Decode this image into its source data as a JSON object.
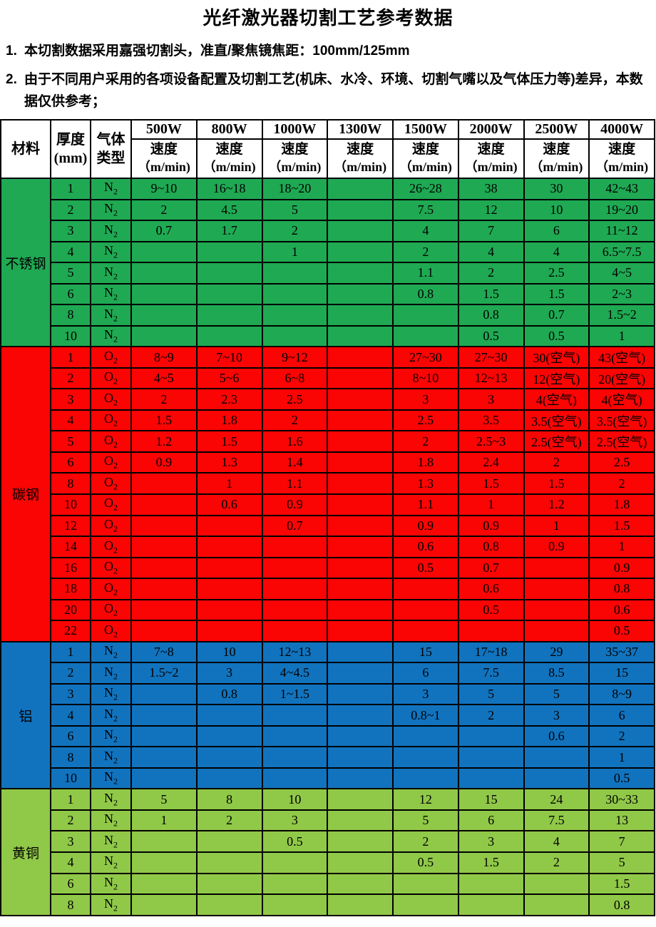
{
  "title": "光纤激光器切割工艺参考数据",
  "notes": [
    {
      "num": "1.",
      "text": "本切割数据采用嘉强切割头，准直/聚焦镜焦距：100mm/125mm"
    },
    {
      "num": "2.",
      "text": "由于不同用户采用的各项设备配置及切割工艺(机床、水冷、环境、切割气嘴以及气体压力等)差异，本数据仅供参考；"
    }
  ],
  "table": {
    "header": {
      "material": "材料",
      "thickness_line1": "厚度",
      "thickness_line2": "(mm)",
      "gas_line1": "气体",
      "gas_line2": "类型",
      "powers": [
        "500W",
        "800W",
        "1000W",
        "1300W",
        "1500W",
        "2000W",
        "2500W",
        "4000W"
      ],
      "speed_label": "速度",
      "speed_unit": "（m/min)"
    },
    "sections": [
      {
        "material": "不锈钢",
        "color": "#1fa953",
        "rows": [
          {
            "t": "1",
            "g": "N",
            "gs": "2",
            "v": [
              "9~10",
              "16~18",
              "18~20",
              "",
              "26~28",
              "38",
              "30",
              "42~43"
            ]
          },
          {
            "t": "2",
            "g": "N",
            "gs": "2",
            "v": [
              "2",
              "4.5",
              "5",
              "",
              "7.5",
              "12",
              "10",
              "19~20"
            ]
          },
          {
            "t": "3",
            "g": "N",
            "gs": "2",
            "v": [
              "0.7",
              "1.7",
              "2",
              "",
              "4",
              "7",
              "6",
              "11~12"
            ]
          },
          {
            "t": "4",
            "g": "N",
            "gs": "2",
            "v": [
              "",
              "",
              "1",
              "",
              "2",
              "4",
              "4",
              "6.5~7.5"
            ]
          },
          {
            "t": "5",
            "g": "N",
            "gs": "2",
            "v": [
              "",
              "",
              "",
              "",
              "1.1",
              "2",
              "2.5",
              "4~5"
            ]
          },
          {
            "t": "6",
            "g": "N",
            "gs": "2",
            "v": [
              "",
              "",
              "",
              "",
              "0.8",
              "1.5",
              "1.5",
              "2~3"
            ]
          },
          {
            "t": "8",
            "g": "N",
            "gs": "2",
            "v": [
              "",
              "",
              "",
              "",
              "",
              "0.8",
              "0.7",
              "1.5~2"
            ]
          },
          {
            "t": "10",
            "g": "N",
            "gs": "2",
            "v": [
              "",
              "",
              "",
              "",
              "",
              "0.5",
              "0.5",
              "1"
            ]
          }
        ]
      },
      {
        "material": "碳钢",
        "color": "#fb0404",
        "rows": [
          {
            "t": "1",
            "g": "O",
            "gs": "2",
            "v": [
              "8~9",
              "7~10",
              "9~12",
              "",
              "27~30",
              "27~30",
              "30(空气)",
              "43(空气)"
            ]
          },
          {
            "t": "2",
            "g": "O",
            "gs": "2",
            "v": [
              "4~5",
              "5~6",
              "6~8",
              "",
              "8~10",
              "12~13",
              "12(空气)",
              "20(空气)"
            ]
          },
          {
            "t": "3",
            "g": "O",
            "gs": "2",
            "v": [
              "2",
              "2.3",
              "2.5",
              "",
              "3",
              "3",
              "4(空气)",
              "4(空气)"
            ]
          },
          {
            "t": "4",
            "g": "O",
            "gs": "2",
            "v": [
              "1.5",
              "1.8",
              "2",
              "",
              "2.5",
              "3.5",
              "3.5(空气)",
              "3.5(空气)"
            ]
          },
          {
            "t": "5",
            "g": "O",
            "gs": "2",
            "v": [
              "1.2",
              "1.5",
              "1.6",
              "",
              "2",
              "2.5~3",
              "2.5(空气)",
              "2.5(空气)"
            ]
          },
          {
            "t": "6",
            "g": "O",
            "gs": "2",
            "v": [
              "0.9",
              "1.3",
              "1.4",
              "",
              "1.8",
              "2.4",
              "2",
              "2.5"
            ]
          },
          {
            "t": "8",
            "g": "O",
            "gs": "2",
            "v": [
              "",
              "1",
              "1.1",
              "",
              "1.3",
              "1.5",
              "1.5",
              "2"
            ]
          },
          {
            "t": "10",
            "g": "O",
            "gs": "2",
            "v": [
              "",
              "0.6",
              "0.9",
              "",
              "1.1",
              "1",
              "1.2",
              "1.8"
            ]
          },
          {
            "t": "12",
            "g": "O",
            "gs": "2",
            "v": [
              "",
              "",
              "0.7",
              "",
              "0.9",
              "0.9",
              "1",
              "1.5"
            ]
          },
          {
            "t": "14",
            "g": "O",
            "gs": "2",
            "v": [
              "",
              "",
              "",
              "",
              "0.6",
              "0.8",
              "0.9",
              "1"
            ]
          },
          {
            "t": "16",
            "g": "O",
            "gs": "2",
            "v": [
              "",
              "",
              "",
              "",
              "0.5",
              "0.7",
              "",
              "0.9"
            ]
          },
          {
            "t": "18",
            "g": "O",
            "gs": "2",
            "v": [
              "",
              "",
              "",
              "",
              "",
              "0.6",
              "",
              "0.8"
            ]
          },
          {
            "t": "20",
            "g": "O",
            "gs": "2",
            "v": [
              "",
              "",
              "",
              "",
              "",
              "0.5",
              "",
              "0.6"
            ]
          },
          {
            "t": "22",
            "g": "O",
            "gs": "2",
            "v": [
              "",
              "",
              "",
              "",
              "",
              "",
              "",
              "0.5"
            ]
          }
        ]
      },
      {
        "material": "铝",
        "color": "#1173be",
        "rows": [
          {
            "t": "1",
            "g": "N",
            "gs": "2",
            "v": [
              "7~8",
              "10",
              "12~13",
              "",
              "15",
              "17~18",
              "29",
              "35~37"
            ]
          },
          {
            "t": "2",
            "g": "N",
            "gs": "2",
            "v": [
              "1.5~2",
              "3",
              "4~4.5",
              "",
              "6",
              "7.5",
              "8.5",
              "15"
            ]
          },
          {
            "t": "3",
            "g": "N",
            "gs": "2",
            "v": [
              "",
              "0.8",
              "1~1.5",
              "",
              "3",
              "5",
              "5",
              "8~9"
            ]
          },
          {
            "t": "4",
            "g": "N",
            "gs": "2",
            "v": [
              "",
              "",
              "",
              "",
              "0.8~1",
              "2",
              "3",
              "6"
            ]
          },
          {
            "t": "6",
            "g": "N",
            "gs": "2",
            "v": [
              "",
              "",
              "",
              "",
              "",
              "",
              "0.6",
              "2"
            ]
          },
          {
            "t": "8",
            "g": "N",
            "gs": "2",
            "v": [
              "",
              "",
              "",
              "",
              "",
              "",
              "",
              "1"
            ]
          },
          {
            "t": "10",
            "g": "N",
            "gs": "2",
            "v": [
              "",
              "",
              "",
              "",
              "",
              "",
              "",
              "0.5"
            ]
          }
        ]
      },
      {
        "material": "黄铜",
        "color": "#90c848",
        "rows": [
          {
            "t": "1",
            "g": "N",
            "gs": "2",
            "v": [
              "5",
              "8",
              "10",
              "",
              "12",
              "15",
              "24",
              "30~33"
            ]
          },
          {
            "t": "2",
            "g": "N",
            "gs": "2",
            "v": [
              "1",
              "2",
              "3",
              "",
              "5",
              "6",
              "7.5",
              "13"
            ]
          },
          {
            "t": "3",
            "g": "N",
            "gs": "2",
            "v": [
              "",
              "",
              "0.5",
              "",
              "2",
              "3",
              "4",
              "7"
            ]
          },
          {
            "t": "4",
            "g": "N",
            "gs": "2",
            "v": [
              "",
              "",
              "",
              "",
              "0.5",
              "1.5",
              "2",
              "5"
            ]
          },
          {
            "t": "6",
            "g": "N",
            "gs": "2",
            "v": [
              "",
              "",
              "",
              "",
              "",
              "",
              "",
              "1.5"
            ]
          },
          {
            "t": "8",
            "g": "N",
            "gs": "2",
            "v": [
              "",
              "",
              "",
              "",
              "",
              "",
              "",
              "0.8"
            ]
          }
        ]
      }
    ]
  }
}
